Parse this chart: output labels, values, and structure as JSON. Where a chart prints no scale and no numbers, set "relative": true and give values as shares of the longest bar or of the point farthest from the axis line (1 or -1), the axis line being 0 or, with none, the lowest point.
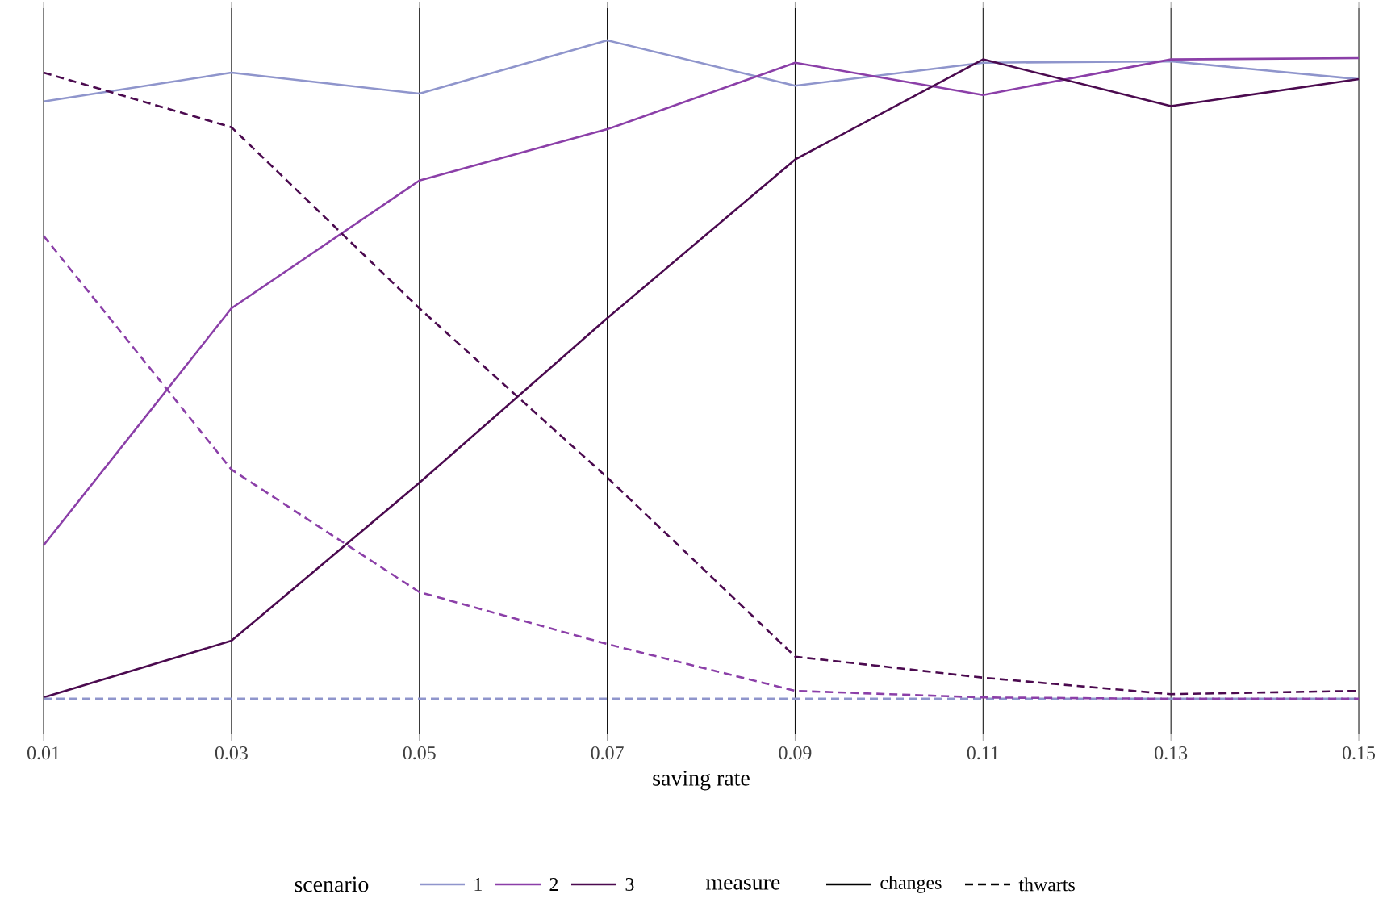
{
  "chart_data": {
    "type": "line",
    "relative": true,
    "xlabel": "saving rate",
    "legend_title": "scenario",
    "legend": "bottom",
    "grid": "x",
    "x": [
      0.01,
      0.03,
      0.05,
      0.07,
      0.09,
      0.11,
      0.13,
      0.15
    ],
    "xlim": [
      0.01,
      0.15
    ],
    "xticks": [
      0.01,
      0.03,
      0.05,
      0.07,
      0.09,
      0.11,
      0.13,
      0.15
    ],
    "series": [
      {
        "name": "1",
        "color": "#8f95cc",
        "line_style": "solid",
        "values": [
          0.907,
          0.951,
          0.919,
          1.0,
          0.931,
          0.966,
          0.968,
          0.941
        ]
      },
      {
        "name": "2",
        "color": "#8b3fa8",
        "line_style": "solid",
        "values": [
          0.233,
          0.593,
          0.787,
          0.865,
          0.966,
          0.917,
          0.971,
          0.973
        ]
      },
      {
        "name": "3",
        "color": "#4b0a4f",
        "line_style": "solid",
        "values": [
          0.002,
          0.088,
          0.328,
          0.578,
          0.819,
          0.971,
          0.9,
          0.941
        ]
      },
      {
        "color": "#8f95cc",
        "line_style": "dashed",
        "values": [
          0,
          0,
          0,
          0,
          0,
          0,
          0,
          0
        ]
      },
      {
        "color": "#8b3fa8",
        "line_style": "dashed",
        "values": [
          0.703,
          0.348,
          0.162,
          0.083,
          0.012,
          0.002,
          0,
          0
        ]
      },
      {
        "color": "#4b0a4f",
        "line_style": "dashed",
        "values": [
          0.951,
          0.868,
          0.593,
          0.336,
          0.064,
          0.032,
          0.007,
          0.012
        ]
      }
    ],
    "annotations": [
      "measure",
      "changes",
      "thwarts"
    ]
  }
}
